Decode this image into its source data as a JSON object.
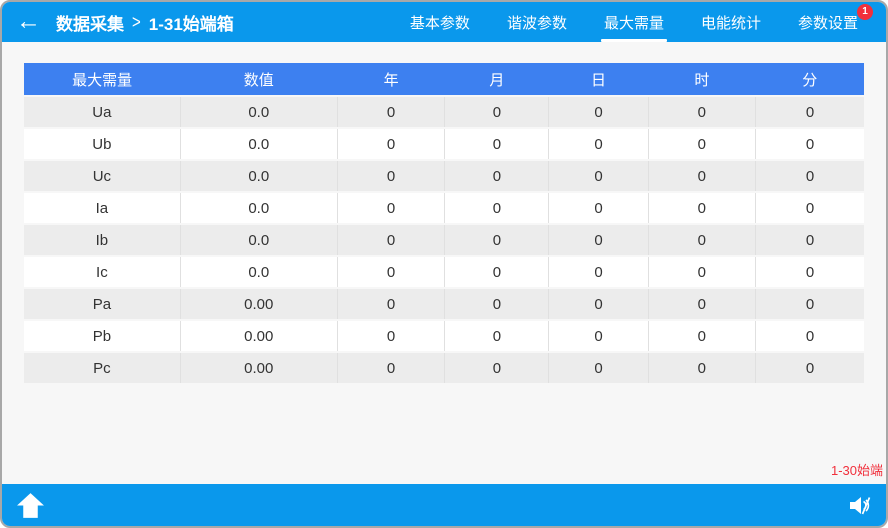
{
  "header": {
    "back_icon": "←",
    "breadcrumb": {
      "root": "数据采集",
      "separator": ">",
      "current": "1-31始端箱"
    },
    "tabs": [
      {
        "id": "basic-params",
        "label": "基本参数",
        "active": false
      },
      {
        "id": "harmonic-params",
        "label": "谐波参数",
        "active": false
      },
      {
        "id": "max-demand",
        "label": "最大需量",
        "active": true
      },
      {
        "id": "energy-stats",
        "label": "电能统计",
        "active": false
      },
      {
        "id": "param-settings",
        "label": "参数设置",
        "active": false,
        "badge": "1"
      }
    ]
  },
  "table": {
    "columns": [
      "最大需量",
      "数值",
      "年",
      "月",
      "日",
      "时",
      "分"
    ],
    "rows": [
      [
        "Ua",
        "0.0",
        "0",
        "0",
        "0",
        "0",
        "0"
      ],
      [
        "Ub",
        "0.0",
        "0",
        "0",
        "0",
        "0",
        "0"
      ],
      [
        "Uc",
        "0.0",
        "0",
        "0",
        "0",
        "0",
        "0"
      ],
      [
        "Ia",
        "0.0",
        "0",
        "0",
        "0",
        "0",
        "0"
      ],
      [
        "Ib",
        "0.0",
        "0",
        "0",
        "0",
        "0",
        "0"
      ],
      [
        "Ic",
        "0.0",
        "0",
        "0",
        "0",
        "0",
        "0"
      ],
      [
        "Pa",
        "0.00",
        "0",
        "0",
        "0",
        "0",
        "0"
      ],
      [
        "Pb",
        "0.00",
        "0",
        "0",
        "0",
        "0",
        "0"
      ],
      [
        "Pc",
        "0.00",
        "0",
        "0",
        "0",
        "0",
        "0"
      ]
    ]
  },
  "footer": {
    "alert_label": "1-30始端"
  },
  "icons": {
    "home": "home-icon",
    "speaker": "speaker-muted-icon"
  },
  "colors": {
    "top_bar": "#0a98ec",
    "table_header": "#3d80f0",
    "alert_red": "#f1303c",
    "row_alt": "#ececec"
  }
}
